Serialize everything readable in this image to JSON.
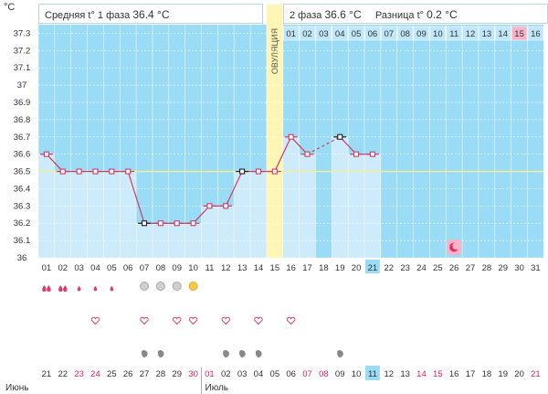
{
  "unit_label": "°C",
  "header": {
    "phase1_label": "Средняя t° 1 фаза",
    "phase1_value": "36.4 °C",
    "phase2_label": "2 фаза",
    "phase2_value": "36.6 °C",
    "diff_label": "Разница t°",
    "diff_value": "0.2 °C"
  },
  "ovulation_label": "ОВУЛЯЦИЯ",
  "colors": {
    "bg_blue": "#9adcf5",
    "bar_blue": "#cdebfb",
    "line": "#cf3b63",
    "coverline": "#f6f08c",
    "ovulation": "#fff6b6",
    "pink": "#f9b3c8",
    "today_cell": "#9adcf5",
    "weekend_text": "#e0206a"
  },
  "chart_data": {
    "type": "line",
    "y_ticks": [
      "37.3",
      "37.2",
      "37.1",
      "37",
      "36.9",
      "36.8",
      "36.7",
      "36.6",
      "36.5",
      "36.4",
      "36.3",
      "36.2",
      "36.1",
      "36"
    ],
    "ylim": [
      36,
      37.3
    ],
    "coverline": 36.5,
    "cycle_days": [
      "01",
      "02",
      "03",
      "04",
      "05",
      "06",
      "07",
      "08",
      "09",
      "10",
      "11",
      "12",
      "13",
      "14",
      "15",
      "16",
      "17",
      "18",
      "19",
      "20",
      "21",
      "22",
      "23",
      "24",
      "25",
      "26",
      "27",
      "28",
      "29",
      "30",
      "31"
    ],
    "dates": [
      "21",
      "22",
      "23",
      "24",
      "25",
      "26",
      "27",
      "28",
      "29",
      "30",
      "01",
      "02",
      "03",
      "04",
      "05",
      "06",
      "07",
      "08",
      "09",
      "10",
      "11",
      "12",
      "13",
      "14",
      "15",
      "16",
      "17",
      "18",
      "19",
      "20",
      "21"
    ],
    "weekend_date_indices": [
      2,
      3,
      9,
      10,
      16,
      17,
      23,
      24,
      30
    ],
    "months": [
      "Июнь",
      "Июль"
    ],
    "phase2_days": [
      "01",
      "02",
      "03",
      "04",
      "05",
      "06",
      "07",
      "08",
      "09",
      "10",
      "11",
      "12",
      "13",
      "14",
      "15",
      "16"
    ],
    "phase2_highlight_index": 14,
    "today_index": 20,
    "ovulation_index": 14,
    "moon_index": 25,
    "temps": [
      36.6,
      36.5,
      36.5,
      36.5,
      36.5,
      36.5,
      36.2,
      36.2,
      36.2,
      36.2,
      36.3,
      36.3,
      36.5,
      36.5,
      36.5,
      36.7,
      36.6,
      null,
      36.7,
      36.6,
      36.6
    ],
    "marked_points": [
      6,
      12,
      18
    ],
    "dashed_segment": [
      16,
      18
    ],
    "symbols": {
      "drops": [
        0,
        1,
        2,
        3,
        4
      ],
      "drop_sizes": [
        2,
        2,
        1,
        1,
        1
      ],
      "circles": [
        6,
        7,
        8,
        9
      ],
      "hearts": [
        3,
        6,
        8,
        9,
        11,
        13,
        15
      ],
      "arrows": [
        6,
        7,
        11,
        12,
        13,
        18
      ]
    }
  }
}
